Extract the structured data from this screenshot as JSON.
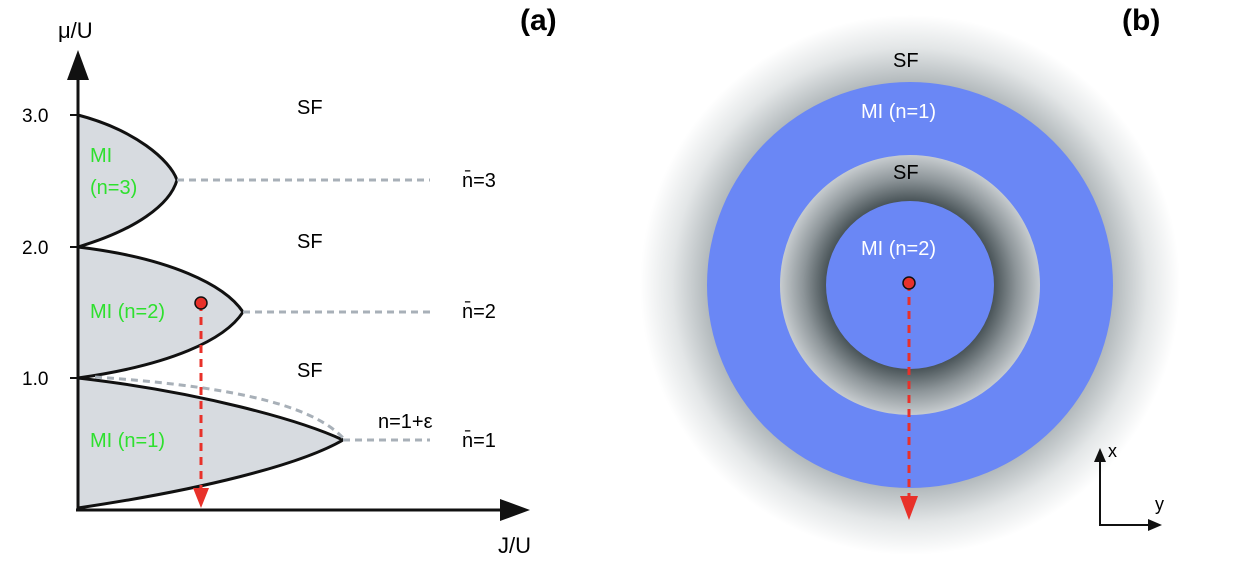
{
  "panel_a": {
    "label": "(a)",
    "y_axis_label": "μ/U",
    "x_axis_label": "J/U",
    "y_ticks": [
      "1.0",
      "2.0",
      "3.0"
    ],
    "phase_labels": [
      "SF",
      "SF",
      "SF"
    ],
    "lobe_labels": {
      "n3_line1": "MI",
      "n3_line2": "(n=3)",
      "n2": "MI (n=2)",
      "n1": "MI (n=1)"
    },
    "filling_labels": {
      "n3": "n̄=3",
      "n2": "n̄=2",
      "n1": "n̄=1",
      "n1_eps": "n=1+ε"
    }
  },
  "panel_b": {
    "label": "(b)",
    "ring_labels": {
      "outer_sf": "SF",
      "mi1": "MI (n=1)",
      "inner_sf": "SF",
      "mi2": "MI (n=2)"
    },
    "axes": {
      "x": "x",
      "y": "y"
    }
  },
  "colors": {
    "lobe_fill": "#d7dbe0",
    "mi_blue": "#6a87f5",
    "lobe_text": "#2ee02e",
    "arrow_red": "#e8312a",
    "dashed_gray": "#a8b0b8",
    "sf_gray": "#4b5559"
  }
}
